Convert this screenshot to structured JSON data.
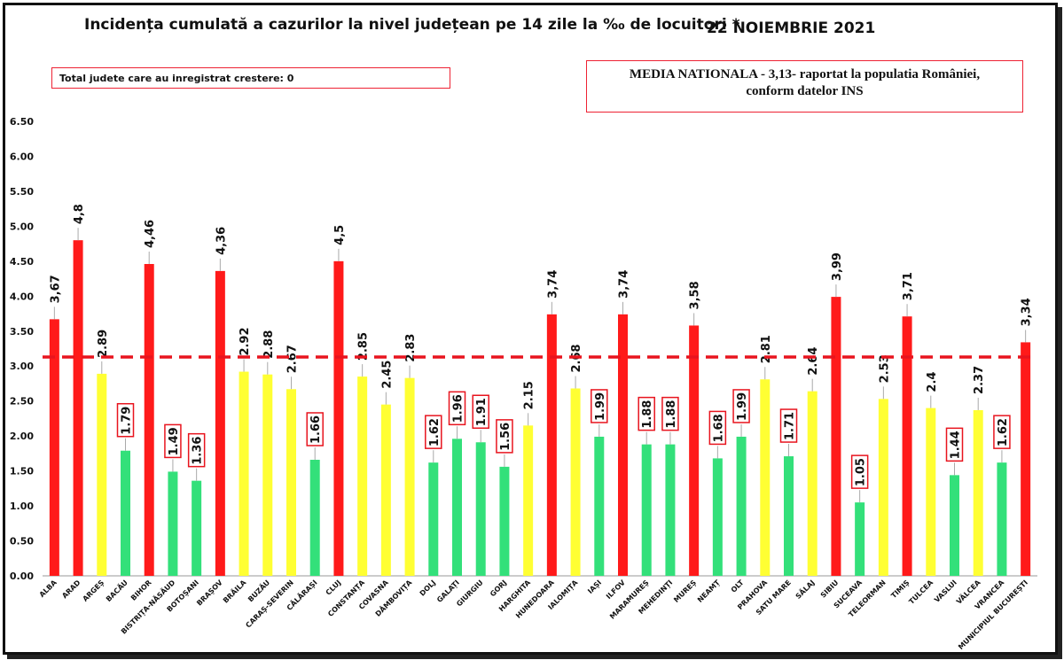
{
  "title": "Incidența cumulată a cazurilor la nivel județean pe 14 zile la ‰ de locuitori *",
  "date": "22 NOIEMBRIE 2021",
  "info_box": "Total judete care au inregistrat crestere: 0",
  "national_box": {
    "line1": "MEDIA NATIONALA - 3,13-  raportat la populatia României,",
    "line2": "conform datelor INS"
  },
  "colors": {
    "red": "#ff1a1a",
    "yellow": "#ffff33",
    "green": "#33e07a",
    "refline": "#e8141e",
    "labelbox": "#e8141e"
  },
  "chart_data": {
    "type": "bar",
    "ylim": [
      0,
      6.5
    ],
    "yticks": [
      "0.00",
      "0.50",
      "1.00",
      "1.50",
      "2.00",
      "2.50",
      "3.00",
      "3.50",
      "4.00",
      "4.50",
      "5.00",
      "5.50",
      "6.00",
      "6.50"
    ],
    "reference_line": 3.13,
    "categories": [
      "ALBA",
      "ARAD",
      "ARGEȘ",
      "BACĂU",
      "BIHOR",
      "BISTRIȚA-NĂSĂUD",
      "BOTOȘANI",
      "BRAȘOV",
      "BRĂILA",
      "BUZĂU",
      "CARAȘ-SEVERIN",
      "CĂLĂRAȘI",
      "CLUJ",
      "CONSTANȚA",
      "COVASNA",
      "DÂMBOVIȚA",
      "DOLJ",
      "GALAȚI",
      "GIURGIU",
      "GORJ",
      "HARGHITA",
      "HUNEDOARA",
      "IALOMIȚA",
      "IAȘI",
      "ILFOV",
      "MARAMUREȘ",
      "MEHEDINȚI",
      "MUREȘ",
      "NEAMȚ",
      "OLT",
      "PRAHOVA",
      "SATU MARE",
      "SĂLAJ",
      "SIBIU",
      "SUCEAVA",
      "TELEORMAN",
      "TIMIȘ",
      "TULCEA",
      "VASLUI",
      "VÂLCEA",
      "VRANCEA",
      "MUNICIPIUL BUCUREȘTI"
    ],
    "values": [
      3.67,
      4.8,
      2.89,
      1.79,
      4.46,
      1.49,
      1.36,
      4.36,
      2.92,
      2.88,
      2.67,
      1.66,
      4.5,
      2.85,
      2.45,
      2.83,
      1.62,
      1.96,
      1.91,
      1.56,
      2.15,
      3.74,
      2.68,
      1.99,
      3.74,
      1.88,
      1.88,
      3.58,
      1.68,
      1.99,
      2.81,
      1.71,
      2.64,
      3.99,
      1.05,
      2.53,
      3.71,
      2.4,
      1.44,
      2.37,
      1.62,
      3.34
    ],
    "labels": [
      "3,67",
      "4,8",
      "2.89",
      "1.79",
      "4,46",
      "1.49",
      "1.36",
      "4,36",
      "2.92",
      "2.88",
      "2.67",
      "1.66",
      "4,5",
      "2.85",
      "2.45",
      "2.83",
      "1.62",
      "1.96",
      "1.91",
      "1.56",
      "2.15",
      "3,74",
      "2.68",
      "1.99",
      "3,74",
      "1.88",
      "1.88",
      "3,58",
      "1.68",
      "1.99",
      "2.81",
      "1.71",
      "2.64",
      "3,99",
      "1.05",
      "2.53",
      "3,71",
      "2.4",
      "1.44",
      "2.37",
      "1.62",
      "3,34"
    ],
    "bar_colors": [
      "red",
      "red",
      "yellow",
      "green",
      "red",
      "green",
      "green",
      "red",
      "yellow",
      "yellow",
      "yellow",
      "green",
      "red",
      "yellow",
      "yellow",
      "yellow",
      "green",
      "green",
      "green",
      "green",
      "yellow",
      "red",
      "yellow",
      "green",
      "red",
      "green",
      "green",
      "red",
      "green",
      "green",
      "yellow",
      "green",
      "yellow",
      "red",
      "green",
      "yellow",
      "red",
      "yellow",
      "green",
      "yellow",
      "green",
      "red"
    ],
    "boxed": [
      "BACĂU",
      "BISTRIȚA-NĂSĂUD",
      "BOTOȘANI",
      "CĂLĂRAȘI",
      "DOLJ",
      "GALAȚI",
      "GIURGIU",
      "GORJ",
      "IAȘI",
      "MARAMUREȘ",
      "MEHEDINȚI",
      "NEAMȚ",
      "OLT",
      "SATU MARE",
      "SUCEAVA",
      "VASLUI",
      "VRANCEA"
    ]
  }
}
